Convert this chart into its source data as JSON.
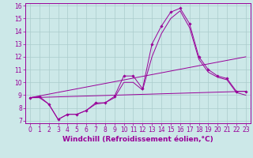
{
  "background_color": "#cce8e8",
  "line_color": "#990099",
  "grid_color": "#aacccc",
  "xlabel": "Windchill (Refroidissement éolien,°C)",
  "xlim": [
    -0.5,
    23.5
  ],
  "ylim": [
    6.8,
    16.2
  ],
  "yticks": [
    7,
    8,
    9,
    10,
    11,
    12,
    13,
    14,
    15,
    16
  ],
  "xticks": [
    0,
    1,
    2,
    3,
    4,
    5,
    6,
    7,
    8,
    9,
    10,
    11,
    12,
    13,
    14,
    15,
    16,
    17,
    18,
    19,
    20,
    21,
    22,
    23
  ],
  "series_marked": {
    "x": [
      0,
      1,
      2,
      3,
      4,
      5,
      6,
      7,
      8,
      9,
      10,
      11,
      12,
      13,
      14,
      15,
      16,
      17,
      18,
      19,
      20,
      21,
      22,
      23
    ],
    "y": [
      8.8,
      8.9,
      8.3,
      7.1,
      7.5,
      7.5,
      7.8,
      8.4,
      8.4,
      8.9,
      10.5,
      10.5,
      9.5,
      13.0,
      14.4,
      15.5,
      15.8,
      14.6,
      12.0,
      11.0,
      10.5,
      10.3,
      9.3,
      9.3
    ]
  },
  "series_smooth": {
    "x": [
      0,
      1,
      2,
      3,
      4,
      5,
      6,
      7,
      8,
      9,
      10,
      11,
      12,
      13,
      14,
      15,
      16,
      17,
      18,
      19,
      20,
      21,
      22,
      23
    ],
    "y": [
      8.8,
      8.8,
      8.3,
      7.1,
      7.5,
      7.5,
      7.8,
      8.3,
      8.4,
      8.8,
      10.0,
      10.0,
      9.4,
      12.0,
      13.8,
      15.0,
      15.6,
      14.3,
      11.8,
      10.8,
      10.4,
      10.2,
      9.2,
      9.0
    ]
  },
  "series_trend1": {
    "x": [
      0,
      23
    ],
    "y": [
      8.8,
      9.3
    ]
  },
  "series_trend2": {
    "x": [
      0,
      23
    ],
    "y": [
      8.8,
      12.0
    ]
  },
  "font_color": "#990099",
  "tick_fontsize": 5.5,
  "label_fontsize": 6.5
}
